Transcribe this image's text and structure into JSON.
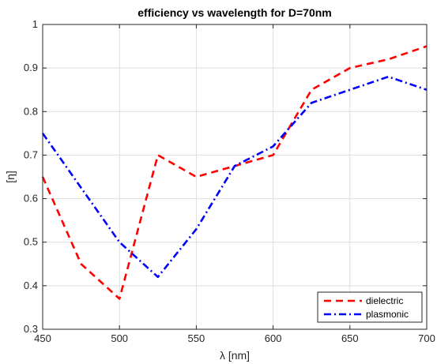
{
  "chart_data": {
    "type": "line",
    "title": "efficiency vs wavelength for D=70nm",
    "xlabel": "λ [nm]",
    "ylabel": "[η]",
    "xlim": [
      450,
      700
    ],
    "ylim": [
      0.3,
      1
    ],
    "xticks": [
      450,
      500,
      550,
      600,
      650,
      700
    ],
    "xtick_labels": [
      "450",
      "500",
      "550",
      "600",
      "650",
      "700"
    ],
    "yticks": [
      0.3,
      0.4,
      0.5,
      0.6,
      0.7,
      0.8,
      0.9,
      1
    ],
    "ytick_labels": [
      "0.3",
      "0.4",
      "0.5",
      "0.6",
      "0.7",
      "0.8",
      "0.9",
      "1"
    ],
    "grid": true,
    "legend_position": "bottom-right",
    "series": [
      {
        "name": "dielectric",
        "color": "#ff0000",
        "style": "dashed",
        "x": [
          450,
          475,
          500,
          525,
          550,
          575,
          600,
          625,
          650,
          675,
          700
        ],
        "y": [
          0.65,
          0.45,
          0.37,
          0.7,
          0.65,
          0.675,
          0.7,
          0.85,
          0.9,
          0.92,
          0.95
        ]
      },
      {
        "name": "plasmonic",
        "color": "#0000ff",
        "style": "dashdot",
        "x": [
          450,
          500,
          525,
          550,
          575,
          600,
          625,
          650,
          675,
          700
        ],
        "y": [
          0.75,
          0.5,
          0.42,
          0.53,
          0.675,
          0.72,
          0.82,
          0.85,
          0.88,
          0.85
        ]
      }
    ]
  }
}
